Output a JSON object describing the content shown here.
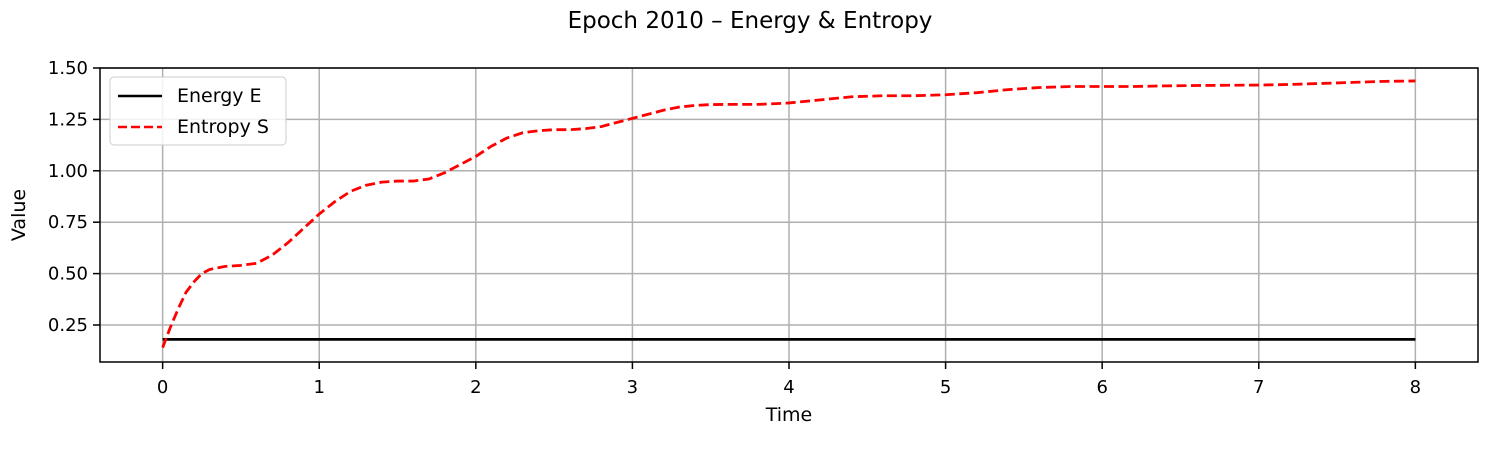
{
  "chart_data": {
    "type": "line",
    "title": "Epoch 2010 – Energy & Entropy",
    "xlabel": "Time",
    "ylabel": "Value",
    "xlim": [
      -0.4,
      8.4
    ],
    "ylim": [
      0.07,
      1.5
    ],
    "xticks": [
      0,
      1,
      2,
      3,
      4,
      5,
      6,
      7,
      8
    ],
    "xtick_labels": [
      "0",
      "1",
      "2",
      "3",
      "4",
      "5",
      "6",
      "7",
      "8"
    ],
    "yticks": [
      0.25,
      0.5,
      0.75,
      1.0,
      1.25,
      1.5
    ],
    "ytick_labels": [
      "0.25",
      "0.50",
      "0.75",
      "1.00",
      "1.25",
      "1.50"
    ],
    "grid": true,
    "legend_position": "upper-left",
    "series": [
      {
        "name": "Energy E",
        "color": "#000000",
        "style": "solid",
        "x": [
          0,
          8
        ],
        "y": [
          0.18,
          0.18
        ]
      },
      {
        "name": "Entropy S",
        "color": "#ff0000",
        "style": "dashed",
        "x": [
          0,
          0.05,
          0.1,
          0.15,
          0.2,
          0.25,
          0.3,
          0.4,
          0.5,
          0.6,
          0.7,
          0.8,
          0.9,
          1.0,
          1.1,
          1.2,
          1.3,
          1.4,
          1.5,
          1.6,
          1.7,
          1.8,
          1.9,
          2.0,
          2.1,
          2.2,
          2.3,
          2.4,
          2.5,
          2.6,
          2.7,
          2.8,
          2.9,
          3.0,
          3.1,
          3.2,
          3.3,
          3.4,
          3.5,
          3.6,
          3.7,
          3.8,
          3.9,
          4.0,
          4.2,
          4.4,
          4.6,
          4.8,
          5.0,
          5.2,
          5.4,
          5.6,
          5.8,
          6.0,
          6.2,
          6.4,
          6.6,
          6.8,
          7.0,
          7.2,
          7.4,
          7.6,
          7.8,
          8.0
        ],
        "y": [
          0.14,
          0.24,
          0.33,
          0.41,
          0.46,
          0.5,
          0.52,
          0.535,
          0.54,
          0.55,
          0.59,
          0.65,
          0.72,
          0.79,
          0.85,
          0.9,
          0.93,
          0.945,
          0.95,
          0.95,
          0.96,
          0.99,
          1.03,
          1.07,
          1.12,
          1.16,
          1.185,
          1.195,
          1.2,
          1.2,
          1.205,
          1.215,
          1.235,
          1.255,
          1.275,
          1.295,
          1.31,
          1.318,
          1.322,
          1.323,
          1.323,
          1.323,
          1.326,
          1.33,
          1.345,
          1.36,
          1.365,
          1.365,
          1.37,
          1.38,
          1.395,
          1.405,
          1.41,
          1.41,
          1.41,
          1.413,
          1.415,
          1.416,
          1.417,
          1.42,
          1.425,
          1.43,
          1.435,
          1.437
        ]
      }
    ]
  }
}
